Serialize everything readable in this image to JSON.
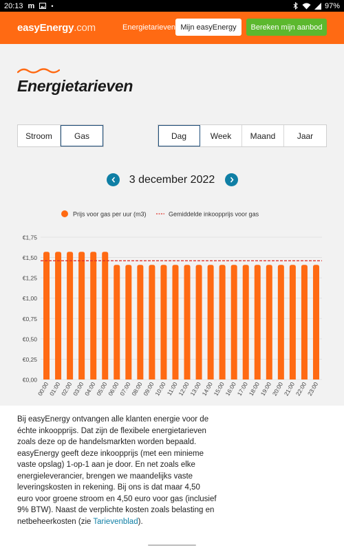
{
  "status_bar": {
    "time": "20:13",
    "carrier_icon": "m",
    "battery": "97%"
  },
  "header": {
    "logo_brand": "easyEnergy",
    "logo_tld": ".com",
    "nav_link": "Energietarieven",
    "account_button": "Mijn easyEnergy",
    "cta_button": "Bereken mijn aanbod",
    "brand_color": "#ff6a13",
    "cta_color": "#5cb82e"
  },
  "page": {
    "title": "Energietarieven"
  },
  "type_toggle": {
    "options": [
      "Stroom",
      "Gas"
    ],
    "selected": "Gas"
  },
  "period_toggle": {
    "options": [
      "Dag",
      "Week",
      "Maand",
      "Jaar"
    ],
    "selected": "Dag"
  },
  "date_nav": {
    "label": "3 december 2022"
  },
  "chart_data": {
    "type": "bar",
    "legend": [
      "Prijs voor gas per uur (m3)",
      "Gemiddelde inkoopprijs voor gas"
    ],
    "legend_placement": "top",
    "categories": [
      "00:00",
      "01:00",
      "02:00",
      "03:00",
      "04:00",
      "05:00",
      "06:00",
      "07:00",
      "08:00",
      "09:00",
      "10:00",
      "11:00",
      "12:00",
      "13:00",
      "14:00",
      "15:00",
      "16:00",
      "17:00",
      "18:00",
      "19:00",
      "20:00",
      "21:00",
      "22:00",
      "23:00"
    ],
    "series": [
      {
        "name": "Prijs voor gas per uur (m3)",
        "values": [
          1.57,
          1.57,
          1.57,
          1.57,
          1.57,
          1.57,
          1.41,
          1.41,
          1.41,
          1.41,
          1.41,
          1.41,
          1.41,
          1.41,
          1.41,
          1.41,
          1.41,
          1.41,
          1.41,
          1.41,
          1.41,
          1.41,
          1.41,
          1.41
        ],
        "color": "#ff6a13"
      }
    ],
    "average": {
      "name": "Gemiddelde inkoopprijs voor gas",
      "value": 1.46,
      "color": "#e0312a"
    },
    "ylim": [
      0,
      1.75
    ],
    "y_ticks": [
      "€0,00",
      "€0,25",
      "€0,50",
      "€0,75",
      "€1,00",
      "€1,25",
      "€1,50",
      "€1,75"
    ],
    "grid": true
  },
  "body_text": {
    "paragraph": "Bij easyEnergy ontvangen alle klanten energie voor de échte inkoopprijs. Dat zijn de flexibele energietarieven zoals deze op de handelsmarkten worden bepaald. easyEnergy geeft deze inkoopprijs (met een minieme vaste opslag) 1-op-1 aan je door. En net zoals elke energieleverancier, brengen we maandelijks vaste leveringskosten in rekening. Bij ons is dat maar 4,50 euro voor groene stroom en 4,50 euro voor gas (inclusief 9% BTW). Naast de verplichte kosten zoals belasting en netbeheerkosten (zie ",
    "link": "Tarievenblad",
    "tail": ")."
  }
}
